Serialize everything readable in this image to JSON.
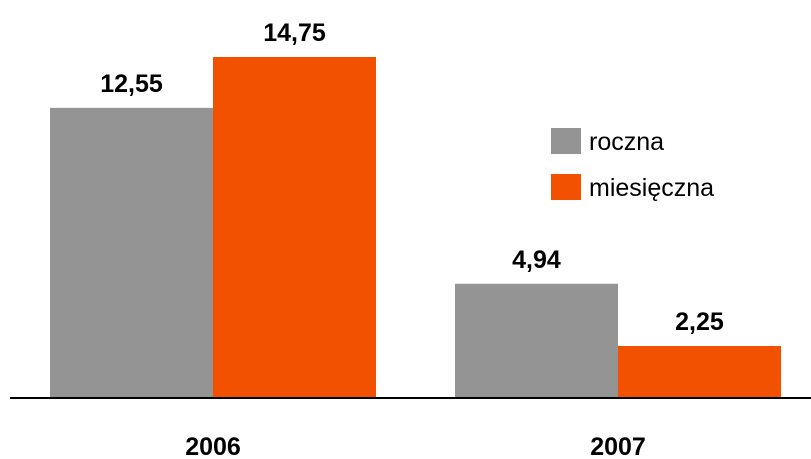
{
  "chart_data": {
    "type": "bar",
    "categories": [
      "2006",
      "2007"
    ],
    "series": [
      {
        "name": "roczna",
        "values": [
          12.55,
          4.94
        ],
        "labels": [
          "12,55",
          "4,94"
        ],
        "color": "#949494"
      },
      {
        "name": "miesięczna",
        "values": [
          14.75,
          2.25
        ],
        "labels": [
          "14,75",
          "2,25"
        ],
        "color": "#f25200"
      }
    ],
    "title": "",
    "xlabel": "",
    "ylabel": "",
    "ylim": [
      0,
      16
    ],
    "grid": false,
    "legend_position": "right"
  }
}
